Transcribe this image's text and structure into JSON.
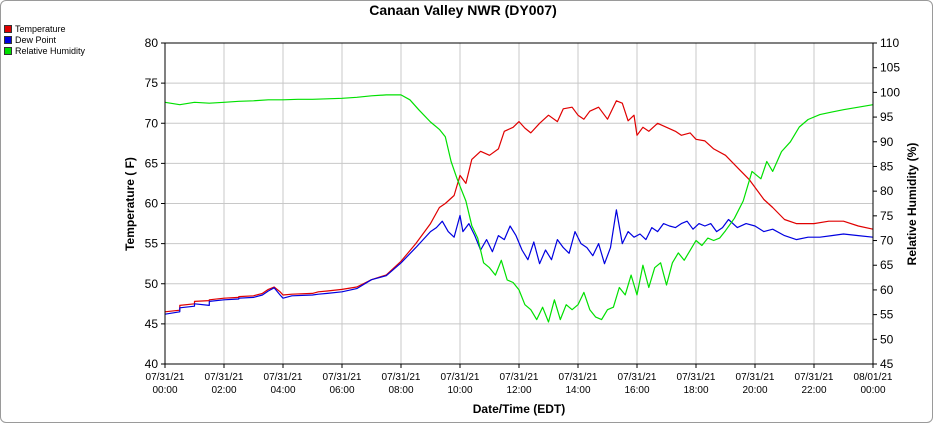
{
  "chart_data": {
    "type": "line",
    "title": "Canaan Valley NWR (DY007)",
    "xlabel": "Date/Time (EDT)",
    "ylabel_left": "Temperature ( F)",
    "ylabel_right": "Relative Humidity (%)",
    "ylim_left": [
      40,
      80
    ],
    "ylim_right": [
      45,
      110
    ],
    "grid": true,
    "legend_position": "top-left",
    "x_ticks": [
      {
        "date": "07/31/21",
        "time": "00:00"
      },
      {
        "date": "07/31/21",
        "time": "02:00"
      },
      {
        "date": "07/31/21",
        "time": "04:00"
      },
      {
        "date": "07/31/21",
        "time": "06:00"
      },
      {
        "date": "07/31/21",
        "time": "08:00"
      },
      {
        "date": "07/31/21",
        "time": "10:00"
      },
      {
        "date": "07/31/21",
        "time": "12:00"
      },
      {
        "date": "07/31/21",
        "time": "14:00"
      },
      {
        "date": "07/31/21",
        "time": "16:00"
      },
      {
        "date": "07/31/21",
        "time": "18:00"
      },
      {
        "date": "07/31/21",
        "time": "20:00"
      },
      {
        "date": "07/31/21",
        "time": "22:00"
      },
      {
        "date": "08/01/21",
        "time": "00:00"
      }
    ],
    "y_ticks_left": [
      40,
      45,
      50,
      55,
      60,
      65,
      70,
      75,
      80
    ],
    "y_ticks_right": [
      45,
      50,
      55,
      60,
      65,
      70,
      75,
      80,
      85,
      90,
      95,
      100,
      105,
      110
    ],
    "series": [
      {
        "name": "Temperature",
        "axis": "left",
        "color": "#e00000",
        "x_hours": [
          0,
          0.5,
          0.5,
          1,
          1,
          1.5,
          1.5,
          2,
          2.5,
          2.5,
          3,
          3.3,
          3.5,
          3.7,
          3.9,
          4,
          4.3,
          5,
          5.2,
          5.5,
          6,
          6.5,
          7,
          7.5,
          8,
          8.5,
          9,
          9.3,
          9.5,
          9.8,
          10,
          10.2,
          10.4,
          10.7,
          11,
          11.3,
          11.5,
          11.8,
          12,
          12.2,
          12.4,
          12.7,
          13,
          13.3,
          13.5,
          13.8,
          14,
          14.2,
          14.4,
          14.7,
          15,
          15.3,
          15.5,
          15.7,
          15.9,
          16,
          16.2,
          16.4,
          16.7,
          17,
          17.3,
          17.5,
          17.8,
          18,
          18.3,
          18.6,
          19,
          19.4,
          19.8,
          20,
          20.3,
          20.6,
          21,
          21.4,
          22,
          22.5,
          23,
          23.5,
          24
        ],
        "values": [
          46.5,
          46.7,
          47.3,
          47.5,
          47.8,
          47.9,
          48.0,
          48.2,
          48.3,
          48.4,
          48.5,
          48.8,
          49.3,
          49.6,
          49.0,
          48.6,
          48.7,
          48.8,
          49.0,
          49.1,
          49.3,
          49.6,
          50.5,
          51.1,
          52.8,
          55.0,
          57.5,
          59.5,
          60.0,
          61.0,
          63.5,
          62.5,
          65.5,
          66.5,
          66.0,
          66.8,
          69.0,
          69.5,
          70.2,
          69.4,
          68.8,
          70.0,
          71.0,
          70.2,
          71.8,
          72.0,
          71.0,
          70.5,
          71.5,
          72.0,
          70.5,
          72.8,
          72.5,
          70.3,
          71.0,
          68.5,
          69.5,
          69.0,
          70.0,
          69.5,
          69.0,
          68.5,
          68.8,
          68.0,
          67.8,
          66.8,
          66.0,
          64.5,
          63.0,
          62.0,
          60.5,
          59.5,
          58.0,
          57.5,
          57.5,
          57.8,
          57.8,
          57.2,
          56.8
        ]
      },
      {
        "name": "Dew Point",
        "axis": "left",
        "color": "#0000e0",
        "x_hours": [
          0,
          0.5,
          0.5,
          1,
          1,
          1.5,
          1.5,
          2,
          2.5,
          2.5,
          3,
          3.3,
          3.5,
          3.7,
          3.9,
          4,
          4.3,
          5,
          5.2,
          5.5,
          6,
          6.5,
          7,
          7.5,
          8,
          8.5,
          9,
          9.2,
          9.4,
          9.6,
          9.8,
          10,
          10.1,
          10.3,
          10.5,
          10.7,
          10.9,
          11.1,
          11.3,
          11.5,
          11.7,
          11.9,
          12.1,
          12.3,
          12.5,
          12.7,
          12.9,
          13.1,
          13.3,
          13.5,
          13.7,
          13.9,
          14.1,
          14.3,
          14.5,
          14.7,
          14.9,
          15.1,
          15.3,
          15.5,
          15.7,
          15.9,
          16.1,
          16.3,
          16.5,
          16.7,
          16.9,
          17.1,
          17.3,
          17.5,
          17.7,
          17.9,
          18.1,
          18.3,
          18.5,
          18.7,
          18.9,
          19.1,
          19.4,
          19.7,
          20,
          20.3,
          20.6,
          21,
          21.4,
          21.8,
          22.2,
          22.6,
          23,
          23.5,
          24
        ],
        "values": [
          46.2,
          46.5,
          47.0,
          47.2,
          47.5,
          47.3,
          47.8,
          48.0,
          48.1,
          48.2,
          48.3,
          48.6,
          49.1,
          49.5,
          48.6,
          48.2,
          48.5,
          48.6,
          48.7,
          48.8,
          49.0,
          49.4,
          50.5,
          51.0,
          52.6,
          54.5,
          56.5,
          57.0,
          57.8,
          56.5,
          55.8,
          58.5,
          56.5,
          57.5,
          56.0,
          54.2,
          55.5,
          54.0,
          56.0,
          55.5,
          57.2,
          56.0,
          54.2,
          53.0,
          55.2,
          52.5,
          54.2,
          53.0,
          55.5,
          54.5,
          53.8,
          56.5,
          55.0,
          54.5,
          53.5,
          55.0,
          52.5,
          54.5,
          59.2,
          55.0,
          56.5,
          55.8,
          56.2,
          55.5,
          57.0,
          56.5,
          57.5,
          57.2,
          57.0,
          57.5,
          57.8,
          56.8,
          57.5,
          57.2,
          57.5,
          56.5,
          57.0,
          58.0,
          57.0,
          57.5,
          57.2,
          56.5,
          56.8,
          56.0,
          55.5,
          55.8,
          55.8,
          56.0,
          56.2,
          56.0,
          55.8
        ]
      },
      {
        "name": "Relative Humidity",
        "axis": "right",
        "color": "#00e000",
        "x_hours": [
          0,
          0.5,
          1,
          1.5,
          2,
          2.5,
          3,
          3.5,
          4,
          4.5,
          5,
          5.5,
          6,
          6.5,
          7,
          7.5,
          8,
          8.3,
          8.6,
          9,
          9.3,
          9.5,
          9.7,
          9.9,
          10,
          10.2,
          10.4,
          10.6,
          10.8,
          11,
          11.2,
          11.4,
          11.6,
          11.8,
          12,
          12.2,
          12.4,
          12.6,
          12.8,
          13,
          13.2,
          13.4,
          13.6,
          13.8,
          14,
          14.2,
          14.4,
          14.6,
          14.8,
          15,
          15.2,
          15.4,
          15.6,
          15.8,
          16,
          16.2,
          16.4,
          16.6,
          16.8,
          17,
          17.2,
          17.4,
          17.6,
          17.8,
          18,
          18.2,
          18.4,
          18.6,
          18.8,
          19,
          19.3,
          19.6,
          19.9,
          20.2,
          20.4,
          20.6,
          20.9,
          21.2,
          21.5,
          21.8,
          22.2,
          22.6,
          23,
          23.5,
          24
        ],
        "values": [
          98,
          97.5,
          98,
          97.8,
          98,
          98.2,
          98.3,
          98.5,
          98.5,
          98.6,
          98.6,
          98.7,
          98.8,
          99,
          99.3,
          99.5,
          99.5,
          98.5,
          96.5,
          94,
          92.5,
          91,
          86,
          82.5,
          81,
          78,
          73,
          70.5,
          65.5,
          64.5,
          63,
          66,
          62,
          61.5,
          60,
          57,
          56,
          54,
          56.5,
          53.5,
          58,
          54,
          57,
          56,
          57,
          59.5,
          56,
          54.5,
          54,
          56,
          56.5,
          60.5,
          59,
          63,
          59,
          65,
          60.5,
          64.5,
          65.5,
          61,
          65.5,
          67.5,
          66,
          68,
          70,
          69,
          70.5,
          70,
          70.5,
          72,
          74.5,
          78,
          84,
          82.5,
          86,
          84,
          88,
          90,
          93,
          94.5,
          95.5,
          96,
          96.5,
          97,
          97.5
        ]
      }
    ]
  }
}
